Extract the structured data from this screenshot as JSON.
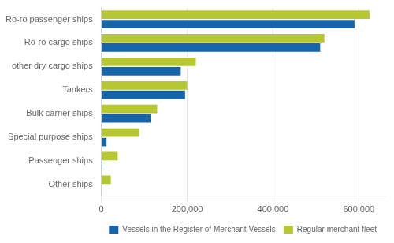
{
  "chart_data": {
    "type": "bar",
    "orientation": "horizontal",
    "categories": [
      "Ro-ro passenger ships",
      "Ro-ro cargo ships",
      "other dry cargo ships",
      "Tankers",
      "Bulk carrier ships",
      "Special purpose ships",
      "Passenger ships",
      "Other ships"
    ],
    "series": [
      {
        "name": "Regular merchant fleet",
        "color": "#b5c832",
        "values": [
          625000,
          520000,
          220000,
          200000,
          130000,
          88000,
          38000,
          22000
        ]
      },
      {
        "name": "Vessels in the Register of Merchant Vessels",
        "color": "#1565a8",
        "values": [
          590000,
          510000,
          185000,
          195000,
          115000,
          12000,
          2000,
          0
        ]
      }
    ],
    "xlim": [
      0,
      660000
    ],
    "xticks": [
      {
        "value": 0,
        "label": "0"
      },
      {
        "value": 200000,
        "label": "200,000"
      },
      {
        "value": 400000,
        "label": "400,000"
      },
      {
        "value": 600000,
        "label": "600,000"
      }
    ],
    "grid": "x",
    "legend": "lower right"
  }
}
